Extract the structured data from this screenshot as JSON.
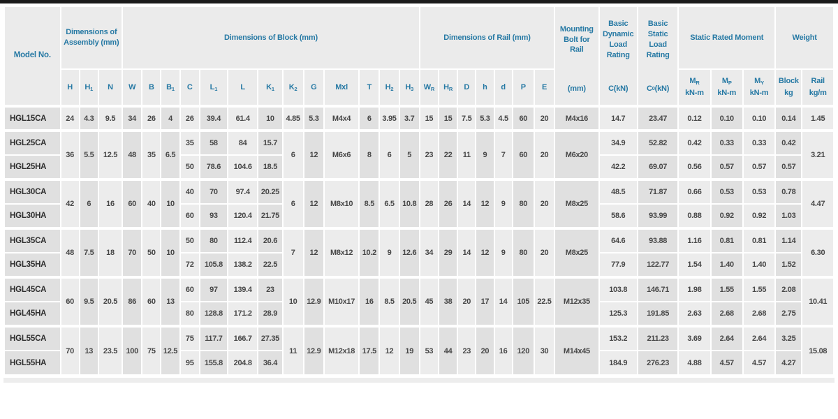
{
  "colors": {
    "accent_blue": "#2679a4",
    "header_bg": "#ebebeb",
    "stripe_light": "#ececec",
    "stripe_dark": "#e0e0e0",
    "top_bar": "#1b1b1b",
    "data_text": "#474747"
  },
  "table": {
    "header": {
      "model": "Model No.",
      "groups": [
        {
          "label": "Dimensions of Assembly (mm)",
          "span": 3
        },
        {
          "label": "Dimensions of Block (mm)",
          "span": 13
        },
        {
          "label": "Dimensions of Rail (mm)",
          "span": 7
        }
      ],
      "stacked": [
        {
          "label": "Mounting Bolt for Rail",
          "sub": "(mm)"
        },
        {
          "label": "Basic Dynamic Load Rating",
          "sub": "C(kN)"
        },
        {
          "label": "Basic Static Load Rating",
          "sub": "C_0 (kN)"
        }
      ],
      "moment_group": {
        "label": "Static Rated Moment",
        "subs": [
          {
            "top": "M_R",
            "bottom": "kN-m"
          },
          {
            "top": "M_P",
            "bottom": "kN-m"
          },
          {
            "top": "M_Y",
            "bottom": "kN-m"
          }
        ]
      },
      "weight_group": {
        "label": "Weight",
        "subs": [
          {
            "top": "Block",
            "bottom": "kg"
          },
          {
            "top": "Rail",
            "bottom": "kg/m"
          }
        ]
      },
      "dim_subs": [
        "H",
        "H_1",
        "N",
        "W",
        "B",
        "B_1",
        "C",
        "L_1",
        "L",
        "K_1",
        "K_2",
        "G",
        "Mxl",
        "T",
        "H_2",
        "H_3",
        "W_R",
        "H_R",
        "D",
        "h",
        "d",
        "P",
        "E"
      ]
    },
    "groups": [
      {
        "shared": {
          "assembly": [
            "24",
            "4.3",
            "9.5"
          ],
          "block_wbb": [
            "34",
            "26",
            "4"
          ],
          "block_kgmth": [
            "4.85",
            "5.3",
            "M4x4",
            "6",
            "3.95",
            "3.7"
          ],
          "rail": [
            "15",
            "15",
            "7.5",
            "5.3",
            "4.5",
            "60",
            "20"
          ],
          "bolt": "M4x16",
          "rail_weight": "1.45"
        },
        "rows": [
          {
            "model": "HGL15CA",
            "block": [
              "26",
              "39.4",
              "61.4",
              "10"
            ],
            "ratings": [
              "14.7",
              "23.47",
              "0.12",
              "0.10",
              "0.10",
              "0.14"
            ]
          }
        ]
      },
      {
        "shared": {
          "assembly": [
            "36",
            "5.5",
            "12.5"
          ],
          "block_wbb": [
            "48",
            "35",
            "6.5"
          ],
          "block_kgmth": [
            "6",
            "12",
            "M6x6",
            "8",
            "6",
            "5"
          ],
          "rail": [
            "23",
            "22",
            "11",
            "9",
            "7",
            "60",
            "20"
          ],
          "bolt": "M6x20",
          "rail_weight": "3.21"
        },
        "rows": [
          {
            "model": "HGL25CA",
            "block": [
              "35",
              "58",
              "84",
              "15.7"
            ],
            "ratings": [
              "34.9",
              "52.82",
              "0.42",
              "0.33",
              "0.33",
              "0.42"
            ]
          },
          {
            "model": "HGL25HA",
            "block": [
              "50",
              "78.6",
              "104.6",
              "18.5"
            ],
            "ratings": [
              "42.2",
              "69.07",
              "0.56",
              "0.57",
              "0.57",
              "0.57"
            ]
          }
        ]
      },
      {
        "shared": {
          "assembly": [
            "42",
            "6",
            "16"
          ],
          "block_wbb": [
            "60",
            "40",
            "10"
          ],
          "block_kgmth": [
            "6",
            "12",
            "M8x10",
            "8.5",
            "6.5",
            "10.8"
          ],
          "rail": [
            "28",
            "26",
            "14",
            "12",
            "9",
            "80",
            "20"
          ],
          "bolt": "M8x25",
          "rail_weight": "4.47"
        },
        "rows": [
          {
            "model": "HGL30CA",
            "block": [
              "40",
              "70",
              "97.4",
              "20.25"
            ],
            "ratings": [
              "48.5",
              "71.87",
              "0.66",
              "0.53",
              "0.53",
              "0.78"
            ]
          },
          {
            "model": "HGL30HA",
            "block": [
              "60",
              "93",
              "120.4",
              "21.75"
            ],
            "ratings": [
              "58.6",
              "93.99",
              "0.88",
              "0.92",
              "0.92",
              "1.03"
            ]
          }
        ]
      },
      {
        "shared": {
          "assembly": [
            "48",
            "7.5",
            "18"
          ],
          "block_wbb": [
            "70",
            "50",
            "10"
          ],
          "block_kgmth": [
            "7",
            "12",
            "M8x12",
            "10.2",
            "9",
            "12.6"
          ],
          "rail": [
            "34",
            "29",
            "14",
            "12",
            "9",
            "80",
            "20"
          ],
          "bolt": "M8x25",
          "rail_weight": "6.30"
        },
        "rows": [
          {
            "model": "HGL35CA",
            "block": [
              "50",
              "80",
              "112.4",
              "20.6"
            ],
            "ratings": [
              "64.6",
              "93.88",
              "1.16",
              "0.81",
              "0.81",
              "1.14"
            ]
          },
          {
            "model": "HGL35HA",
            "block": [
              "72",
              "105.8",
              "138.2",
              "22.5"
            ],
            "ratings": [
              "77.9",
              "122.77",
              "1.54",
              "1.40",
              "1.40",
              "1.52"
            ]
          }
        ]
      },
      {
        "shared": {
          "assembly": [
            "60",
            "9.5",
            "20.5"
          ],
          "block_wbb": [
            "86",
            "60",
            "13"
          ],
          "block_kgmth": [
            "10",
            "12.9",
            "M10x17",
            "16",
            "8.5",
            "20.5"
          ],
          "rail": [
            "45",
            "38",
            "20",
            "17",
            "14",
            "105",
            "22.5"
          ],
          "bolt": "M12x35",
          "rail_weight": "10.41"
        },
        "rows": [
          {
            "model": "HGL45CA",
            "block": [
              "60",
              "97",
              "139.4",
              "23"
            ],
            "ratings": [
              "103.8",
              "146.71",
              "1.98",
              "1.55",
              "1.55",
              "2.08"
            ]
          },
          {
            "model": "HGL45HA",
            "block": [
              "80",
              "128.8",
              "171.2",
              "28.9"
            ],
            "ratings": [
              "125.3",
              "191.85",
              "2.63",
              "2.68",
              "2.68",
              "2.75"
            ]
          }
        ]
      },
      {
        "shared": {
          "assembly": [
            "70",
            "13",
            "23.5"
          ],
          "block_wbb": [
            "100",
            "75",
            "12.5"
          ],
          "block_kgmth": [
            "11",
            "12.9",
            "M12x18",
            "17.5",
            "12",
            "19"
          ],
          "rail": [
            "53",
            "44",
            "23",
            "20",
            "16",
            "120",
            "30"
          ],
          "bolt": "M14x45",
          "rail_weight": "15.08"
        },
        "rows": [
          {
            "model": "HGL55CA",
            "block": [
              "75",
              "117.7",
              "166.7",
              "27.35"
            ],
            "ratings": [
              "153.2",
              "211.23",
              "3.69",
              "2.64",
              "2.64",
              "3.25"
            ]
          },
          {
            "model": "HGL55HA",
            "block": [
              "95",
              "155.8",
              "204.8",
              "36.4"
            ],
            "ratings": [
              "184.9",
              "276.23",
              "4.88",
              "4.57",
              "4.57",
              "4.27"
            ]
          }
        ]
      }
    ]
  }
}
